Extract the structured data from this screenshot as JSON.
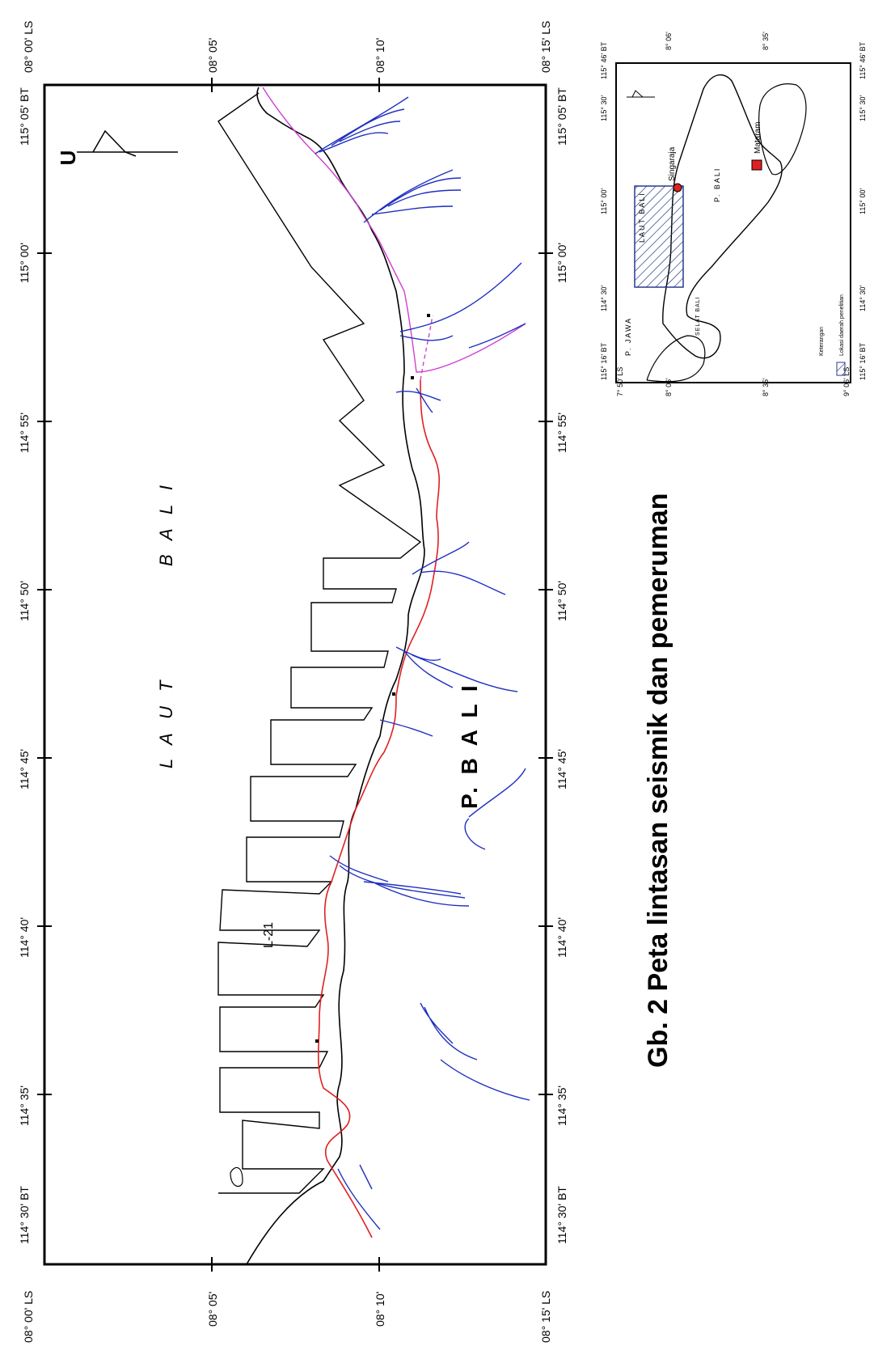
{
  "main_map": {
    "corner_top_left": "08° 00' LS",
    "corner_top_right": "08° 15' LS",
    "corner_bottom_left": "08° 00' LS",
    "corner_bottom_right": "08° 15' LS",
    "lon_left_top": "114° 30'  BT",
    "lon_left_bottom": "114° 30'  BT",
    "lon_right_top": "115° 05'  BT",
    "lon_right_bottom": "115° 05'  BT",
    "lat_ticks": [
      "08° 05'",
      "08° 10'"
    ],
    "lon_ticks": [
      "114° 35'",
      "114° 40'",
      "114° 45'",
      "114° 50'",
      "114° 55'",
      "115° 00'"
    ],
    "north_label": "U",
    "sea_label_1": "L A U T",
    "sea_label_2": "B A L I",
    "island_label": "P. B A L I",
    "line_label": "L-21"
  },
  "inset_map": {
    "lon_labels": [
      "114° 30'",
      "115° 00'",
      "115° 30'",
      "115° 46' BT"
    ],
    "lon_first": "115° 16' BT",
    "lat_labels": [
      "8° 06'",
      "8° 35'"
    ],
    "corner_a": "7° 50' LS",
    "corner_b": "9° 06' LS",
    "laut_label": "LAUT BALI",
    "bali_label": "P. BALI",
    "selat_label": "SELAT BALI",
    "jawa_label": "P. JAWA",
    "singaraja_label": "Singaraja",
    "denpasar_label": "Mataram",
    "legend_title": "Keterangan",
    "legend_item": "Lokasi daerah penelitian",
    "colors": {
      "city": "#e02020",
      "study_area": "#283a8c"
    }
  },
  "caption": "Gb. 2 Peta lintasan seismik dan pemeruman",
  "colors": {
    "coast": "#000000",
    "track": "#000000",
    "road": "#e02020",
    "river": "#2030c0",
    "pink_road": "#d040d0"
  }
}
